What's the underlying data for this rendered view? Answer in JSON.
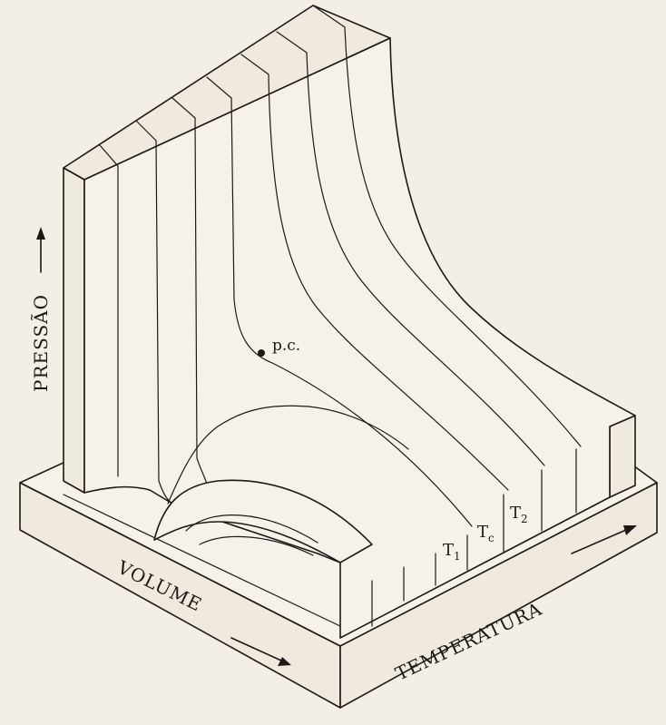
{
  "axes": {
    "pressure_label": "PRESSÃO",
    "volume_label": "VOLUME",
    "temperature_label": "TEMPERATURA"
  },
  "annotations": {
    "critical_point": "p.c."
  },
  "isotherms": {
    "t1": {
      "base": "T",
      "sub": "1"
    },
    "tc": {
      "base": "T",
      "sub": "c"
    },
    "t2": {
      "base": "T",
      "sub": "2"
    }
  }
}
